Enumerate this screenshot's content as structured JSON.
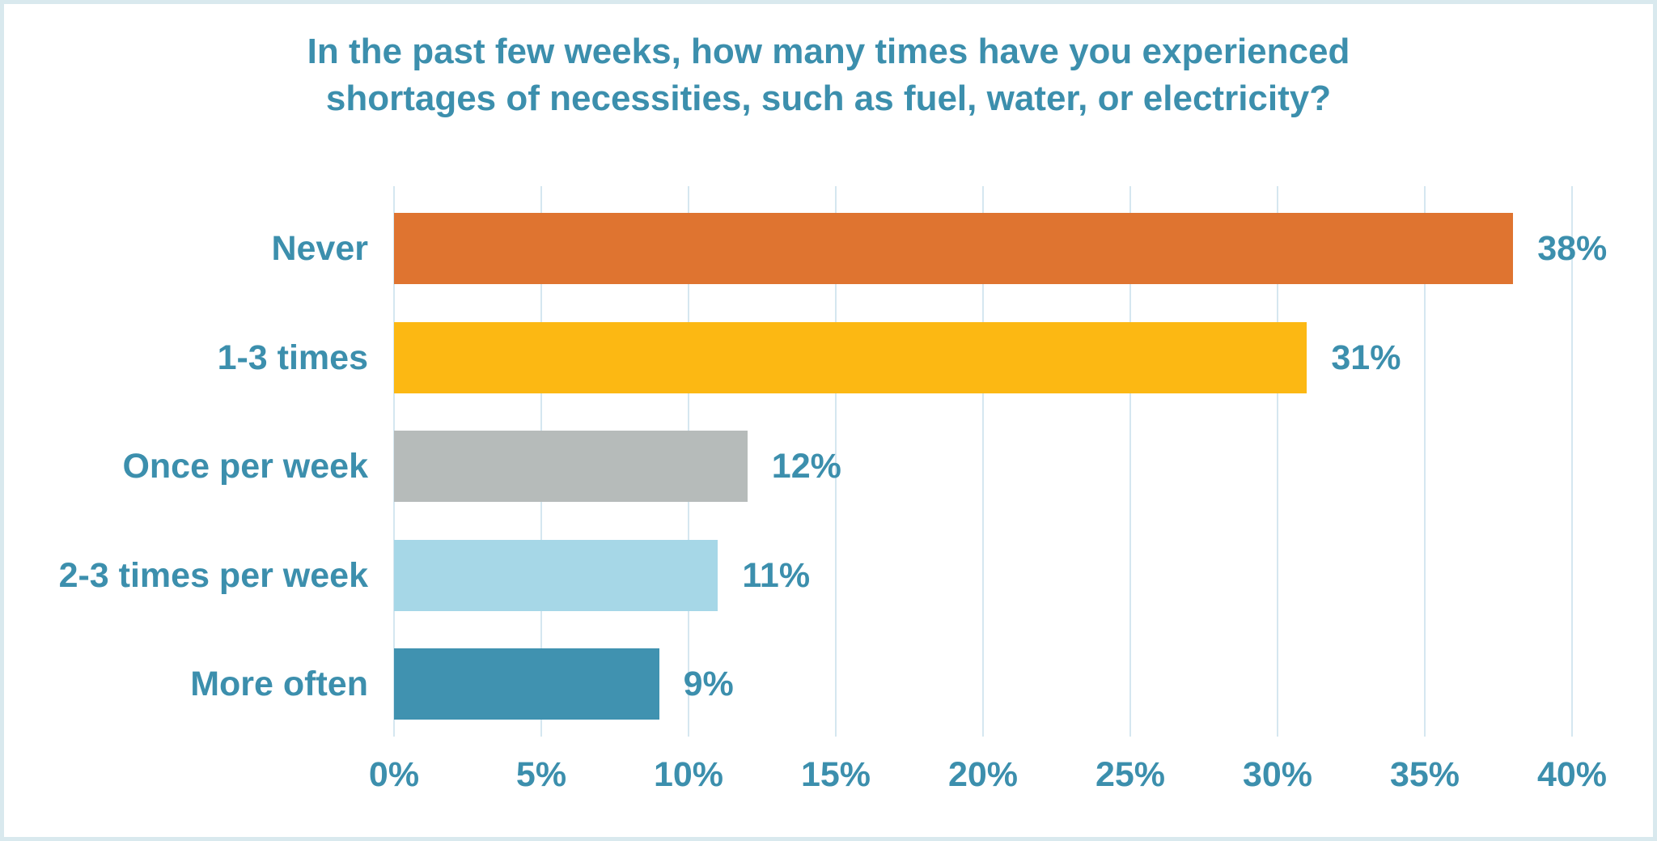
{
  "frame": {
    "background_color": "#ffffff",
    "border_color": "#d9e9ee"
  },
  "title": {
    "lines": [
      "In the past few weeks, how many times have you experienced",
      "shortages of necessities, such as fuel, water, or electricity?"
    ],
    "color": "#3c8fad"
  },
  "chart_data": {
    "type": "bar",
    "orientation": "horizontal",
    "title": "In the past few weeks, how many times have you experienced shortages of necessities, such as fuel, water, or electricity?",
    "categories": [
      "Never",
      "1-3 times",
      "Once per week",
      "2-3 times per week",
      "More often"
    ],
    "values": [
      38,
      31,
      12,
      11,
      9
    ],
    "value_labels": [
      "38%",
      "31%",
      "12%",
      "11%",
      "9%"
    ],
    "bar_colors": [
      "#df7430",
      "#fcb813",
      "#b6bbba",
      "#a6d7e7",
      "#4092b0"
    ],
    "xlabel": "",
    "ylabel": "",
    "x_axis": {
      "min": 0,
      "max": 40,
      "tick_step": 5,
      "tick_labels": [
        "0%",
        "5%",
        "10%",
        "15%",
        "20%",
        "25%",
        "30%",
        "35%",
        "40%"
      ]
    },
    "grid": true,
    "gridline_color": "#d5e7f0",
    "legend": false,
    "text_color": "#3c8fad"
  }
}
